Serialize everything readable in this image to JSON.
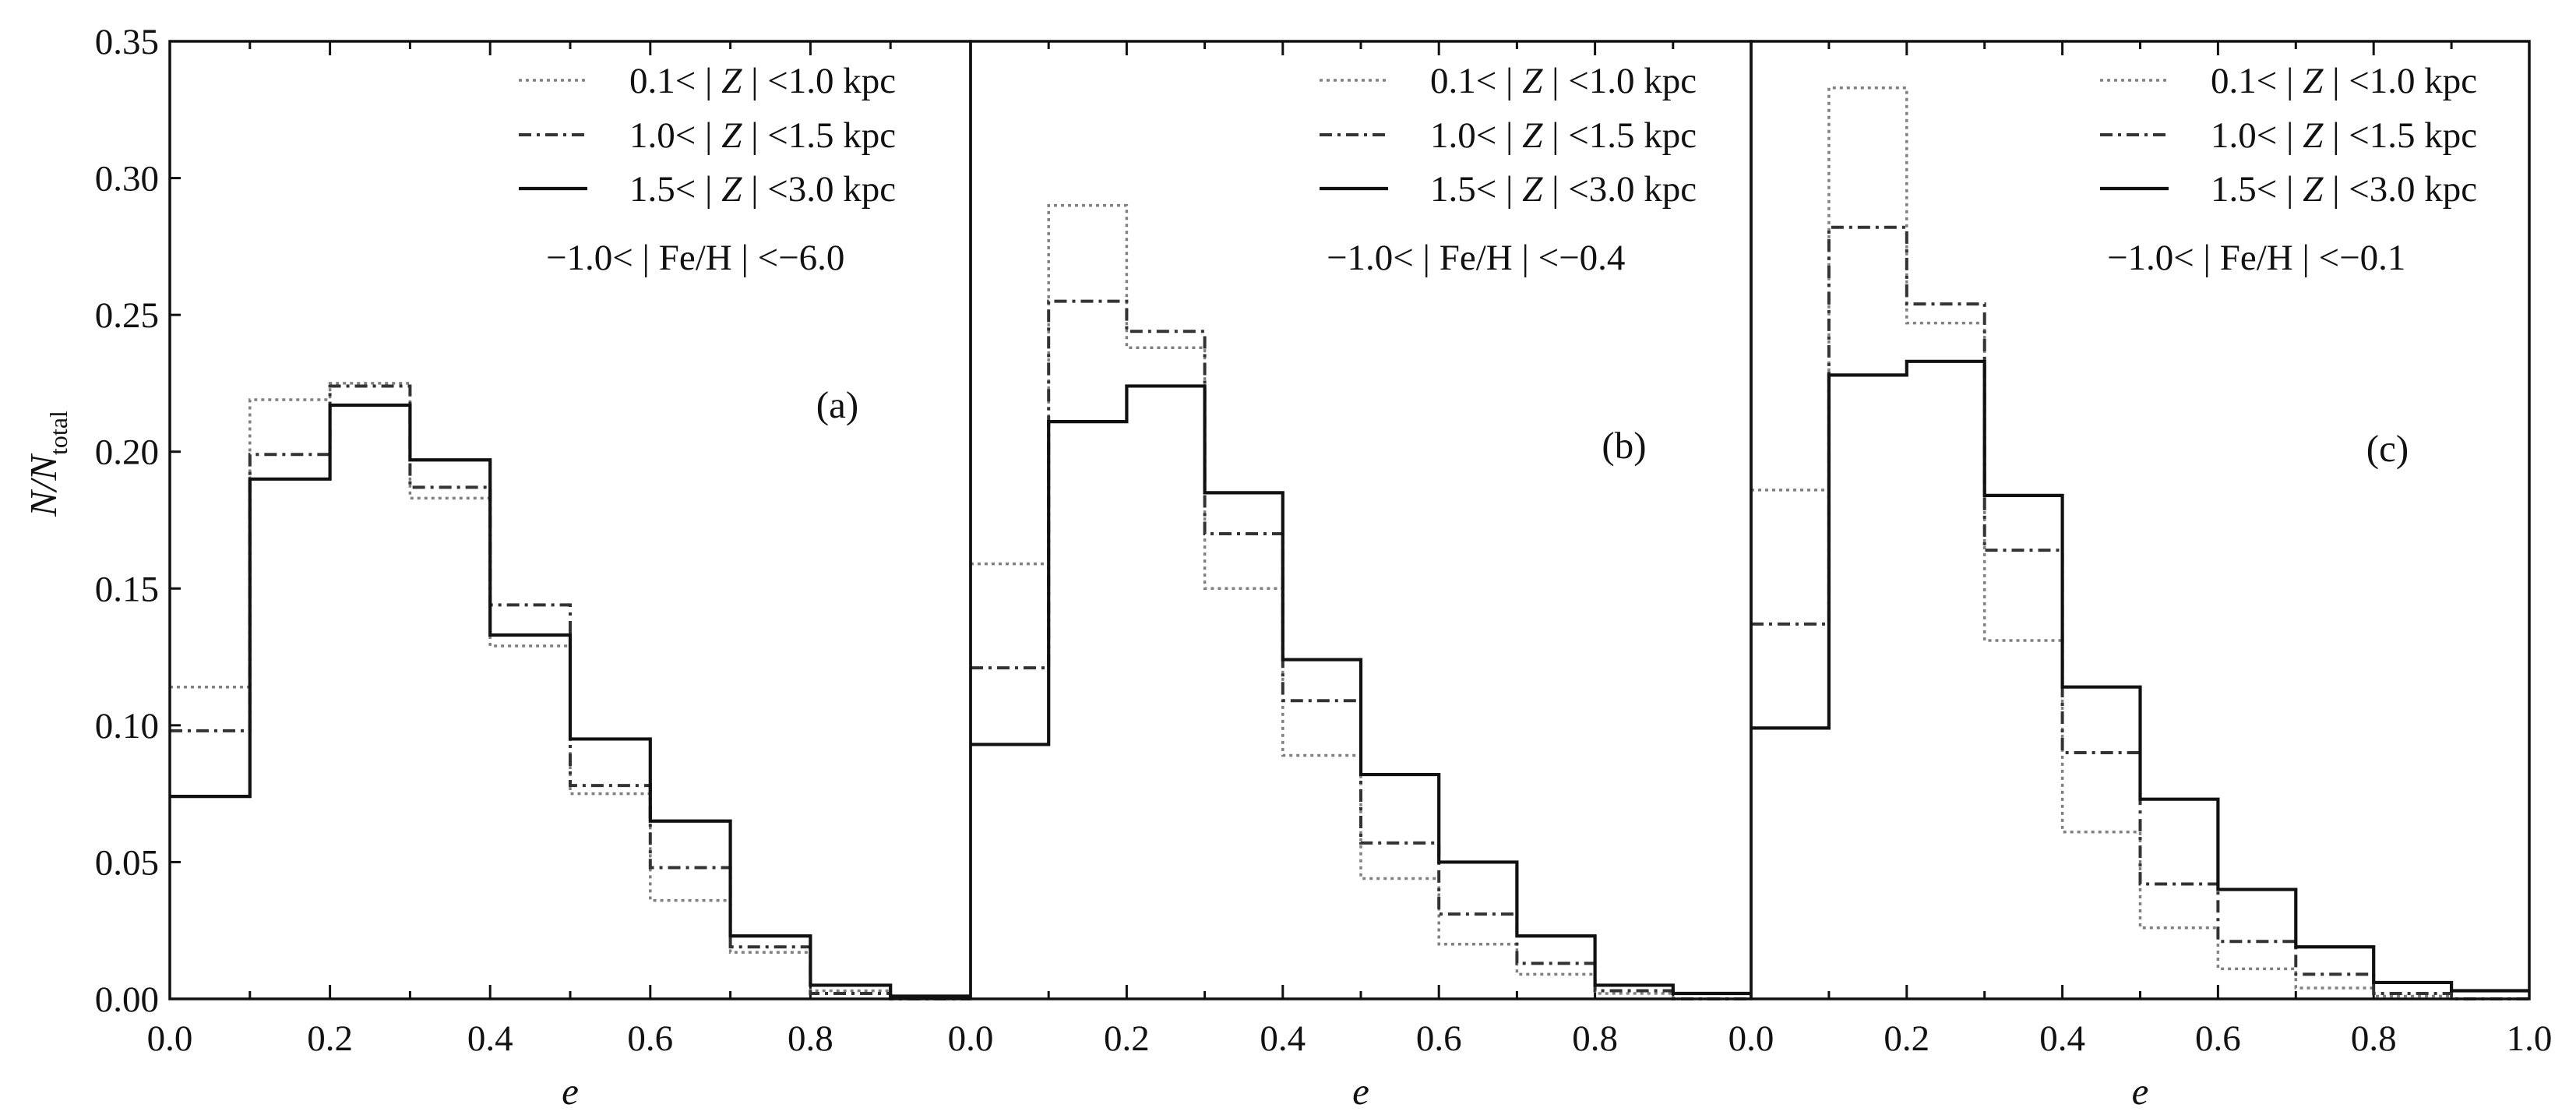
{
  "chart_data": {
    "type": "histogram-step",
    "layout": "three panels sharing y axis, side by side",
    "x_edges": [
      0.0,
      0.1,
      0.2,
      0.3,
      0.4,
      0.5,
      0.6,
      0.7,
      0.8,
      0.9,
      1.0
    ],
    "xlim": [
      0.0,
      1.0
    ],
    "ylim": [
      0.0,
      0.35
    ],
    "xlabel": "e",
    "ylabel": {
      "main": "N/N",
      "subscript": "total"
    },
    "x_tick_labels": [
      [
        "0.0",
        "0.2",
        "0.4",
        "0.6",
        "0.8",
        "0.0"
      ],
      [
        "0.2",
        "0.4",
        "0.6",
        "0.8",
        "0.0"
      ],
      [
        "0.2",
        "0.4",
        "0.6",
        "0.8",
        "1.0"
      ]
    ],
    "y_ticks": [
      0.0,
      0.05,
      0.1,
      0.15,
      0.2,
      0.25,
      0.3,
      0.35
    ],
    "y_tick_labels": [
      "0.00",
      "0.05",
      "0.10",
      "0.15",
      "0.20",
      "0.25",
      "0.30",
      "0.35"
    ],
    "grid": false,
    "legend_position": "top-right",
    "series_styles": [
      {
        "dash": "dotted",
        "color": "#808080"
      },
      {
        "dash": "dash-dot",
        "color": "#333333"
      },
      {
        "dash": "solid",
        "color": "#111111"
      }
    ],
    "legend_parts": [
      "|",
      "Z",
      "|",
      "Fe/H"
    ],
    "panels": [
      {
        "label": "(a)",
        "legend": [
          {
            "pre": "0.1<",
            "post": "<1.0 kpc"
          },
          {
            "pre": "1.0<",
            "post": "<1.5 kpc"
          },
          {
            "pre": "1.5<",
            "post": "<3.0 kpc"
          }
        ],
        "metallicity": {
          "pre": "−1.0<",
          "post": "<−6.0"
        },
        "series": [
          {
            "name": "0.1<|Z|<1.0 kpc",
            "values": [
              0.114,
              0.219,
              0.225,
              0.183,
              0.129,
              0.075,
              0.036,
              0.017,
              0.003,
              0.0
            ]
          },
          {
            "name": "1.0<|Z|<1.5 kpc",
            "values": [
              0.098,
              0.199,
              0.224,
              0.187,
              0.144,
              0.078,
              0.048,
              0.019,
              0.002,
              0.0
            ]
          },
          {
            "name": "1.5<|Z|<3.0 kpc",
            "values": [
              0.074,
              0.19,
              0.217,
              0.197,
              0.133,
              0.095,
              0.065,
              0.023,
              0.005,
              0.001
            ]
          }
        ]
      },
      {
        "label": "(b)",
        "legend": [
          {
            "pre": "0.1<",
            "post": "<1.0 kpc"
          },
          {
            "pre": "1.0<",
            "post": "<1.5 kpc"
          },
          {
            "pre": "1.5<",
            "post": "<3.0 kpc"
          }
        ],
        "metallicity": {
          "pre": "−1.0<",
          "post": "<−0.4"
        },
        "series": [
          {
            "name": "0.1<|Z|<1.0 kpc",
            "values": [
              0.159,
              0.29,
              0.238,
              0.15,
              0.089,
              0.044,
              0.02,
              0.009,
              0.002,
              0.0
            ]
          },
          {
            "name": "1.0<|Z|<1.5 kpc",
            "values": [
              0.121,
              0.255,
              0.244,
              0.17,
              0.109,
              0.057,
              0.031,
              0.013,
              0.003,
              0.0
            ]
          },
          {
            "name": "1.5<|Z|<3.0 kpc",
            "values": [
              0.093,
              0.211,
              0.224,
              0.185,
              0.124,
              0.082,
              0.05,
              0.023,
              0.005,
              0.002
            ]
          }
        ]
      },
      {
        "label": "(c)",
        "legend": [
          {
            "pre": "0.1<",
            "post": "<1.0 kpc"
          },
          {
            "pre": "1.0<",
            "post": "<1.5 kpc"
          },
          {
            "pre": "1.5<",
            "post": "<3.0 kpc"
          }
        ],
        "metallicity": {
          "pre": "−1.0<",
          "post": "<−0.1"
        },
        "series": [
          {
            "name": "0.1<|Z|<1.0 kpc",
            "values": [
              0.186,
              0.333,
              0.247,
              0.131,
              0.061,
              0.026,
              0.011,
              0.004,
              0.001,
              0.0
            ]
          },
          {
            "name": "1.0<|Z|<1.5 kpc",
            "values": [
              0.137,
              0.282,
              0.254,
              0.164,
              0.09,
              0.042,
              0.021,
              0.009,
              0.002,
              0.0
            ]
          },
          {
            "name": "1.5<|Z|<3.0 kpc",
            "values": [
              0.099,
              0.228,
              0.233,
              0.184,
              0.114,
              0.073,
              0.04,
              0.019,
              0.006,
              0.003
            ]
          }
        ]
      }
    ]
  }
}
